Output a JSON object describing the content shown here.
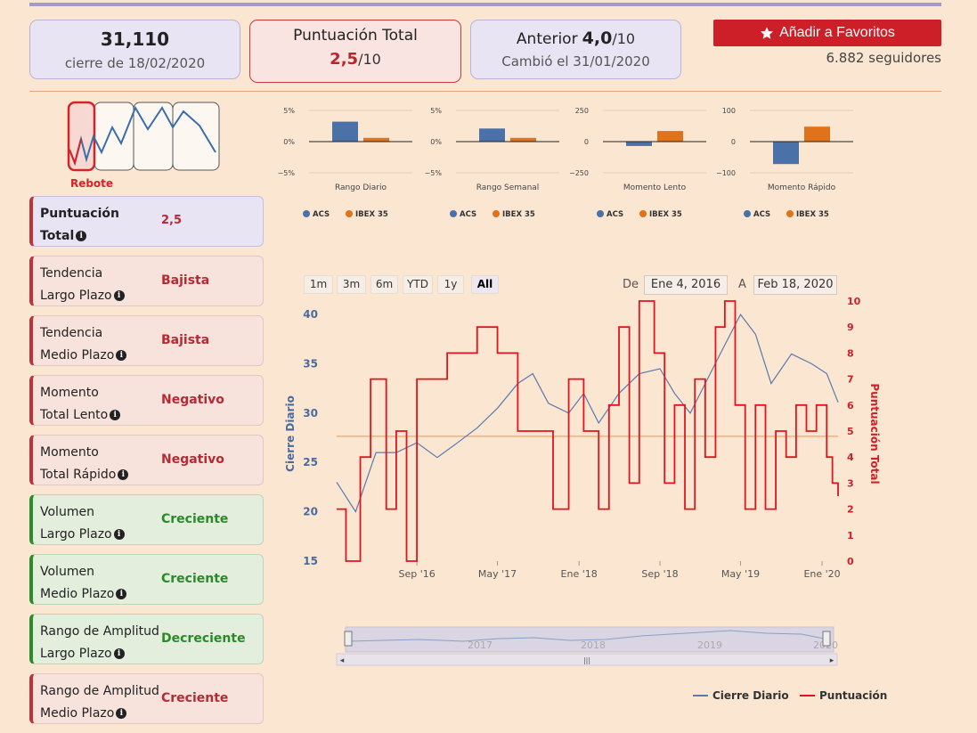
{
  "header": {
    "price": "31,110",
    "price_date": "cierre de 18/02/2020",
    "score_title": "Puntuación Total",
    "score_value": "2,5",
    "score_of": "/10",
    "prev_label": "Anterior",
    "prev_value": "4,0",
    "prev_of": "/10",
    "prev_changed": "Cambió el 31/01/2020",
    "fav_label": "Añadir a Favoritos",
    "followers": "6.882 seguidores"
  },
  "pattern": {
    "label": "Rebote"
  },
  "indicators": [
    {
      "line1": "Puntuación",
      "line2": "Total",
      "value": "2,5",
      "kind": "total"
    },
    {
      "line1": "Tendencia",
      "line2": "Largo Plazo",
      "value": "Bajista",
      "kind": "red"
    },
    {
      "line1": "Tendencia",
      "line2": "Medio Plazo",
      "value": "Bajista",
      "kind": "red"
    },
    {
      "line1": "Momento",
      "line2": "Total Lento",
      "value": "Negativo",
      "kind": "red"
    },
    {
      "line1": "Momento",
      "line2": "Total Rápido",
      "value": "Negativo",
      "kind": "red"
    },
    {
      "line1": "Volumen",
      "line2": "Largo Plazo",
      "value": "Creciente",
      "kind": "green"
    },
    {
      "line1": "Volumen",
      "line2": "Medio Plazo",
      "value": "Creciente",
      "kind": "green"
    },
    {
      "line1": "Rango de Amplitud",
      "line2": "Largo Plazo",
      "value": "Decreciente",
      "kind": "green"
    },
    {
      "line1": "Rango de Amplitud",
      "line2": "Medio Plazo",
      "value": "Creciente",
      "kind": "red"
    }
  ],
  "mini_legend": [
    "ACS",
    "IBEX 35"
  ],
  "colors": {
    "acs": "#4a72a8",
    "ibex": "#e0721a",
    "score": "#e0141e",
    "price": "#5b79ad",
    "ref": "#f0b07a"
  },
  "chart_data": [
    {
      "type": "bar",
      "title": "Rango Diario",
      "categories": [
        "ACS",
        "IBEX 35"
      ],
      "values": [
        3.2,
        0.6
      ],
      "yticks": [
        "5%",
        "0%",
        "−5%"
      ],
      "ylim": [
        -5,
        5
      ]
    },
    {
      "type": "bar",
      "title": "Rango Semanal",
      "categories": [
        "ACS",
        "IBEX 35"
      ],
      "values": [
        2.1,
        0.6
      ],
      "yticks": [
        "5%",
        "0%",
        "−5%"
      ],
      "ylim": [
        -5,
        5
      ]
    },
    {
      "type": "bar",
      "title": "Momento Lento",
      "categories": [
        "ACS",
        "IBEX 35"
      ],
      "values": [
        -35,
        85
      ],
      "yticks": [
        "250",
        "0",
        "−250"
      ],
      "ylim": [
        -250,
        250
      ]
    },
    {
      "type": "bar",
      "title": "Momento Rápido",
      "categories": [
        "ACS",
        "IBEX 35"
      ],
      "values": [
        -72,
        48
      ],
      "yticks": [
        "100",
        "0",
        "−100"
      ],
      "ylim": [
        -100,
        100
      ]
    },
    {
      "type": "line",
      "ylabel_left": "Cierre Diario",
      "ylabel_right": "Puntuación Total",
      "yticks_left": [
        "15",
        "20",
        "25",
        "30",
        "35",
        "40"
      ],
      "yticks_right": [
        "0",
        "1",
        "2",
        "3",
        "4",
        "5",
        "6",
        "7",
        "8",
        "9",
        "10"
      ],
      "xticks": [
        "Sep '16",
        "May '17",
        "Ene '18",
        "Sep '18",
        "May '19",
        "Ene '20"
      ],
      "ylim_left": [
        15,
        41
      ],
      "ylim_right": [
        0,
        10
      ],
      "reference_line": 4.8,
      "series": [
        {
          "name": "Cierre Diario",
          "axis": "left",
          "x": [
            "2016-01-04",
            "2016-03-01",
            "2016-05-01",
            "2016-07-01",
            "2016-09-01",
            "2016-11-01",
            "2017-01-01",
            "2017-03-01",
            "2017-05-01",
            "2017-07-01",
            "2017-08-15",
            "2017-10-01",
            "2017-12-01",
            "2018-01-15",
            "2018-03-01",
            "2018-05-01",
            "2018-07-01",
            "2018-09-01",
            "2018-10-15",
            "2018-12-01",
            "2019-01-15",
            "2019-03-01",
            "2019-05-01",
            "2019-06-15",
            "2019-08-01",
            "2019-10-01",
            "2019-12-01",
            "2020-01-15",
            "2020-02-18"
          ],
          "y": [
            23,
            20,
            26,
            26,
            27,
            25.5,
            27,
            28.5,
            30.5,
            33,
            34,
            31,
            30,
            32,
            29,
            32,
            34,
            34.5,
            32,
            30,
            33,
            36,
            40,
            38,
            33,
            36,
            35,
            34,
            31.1
          ]
        },
        {
          "name": "Puntuación",
          "axis": "right",
          "x": [
            "2016-01-04",
            "2016-02-01",
            "2016-03-15",
            "2016-04-15",
            "2016-06-01",
            "2016-07-01",
            "2016-08-01",
            "2016-09-01",
            "2016-10-01",
            "2016-12-01",
            "2017-02-01",
            "2017-03-01",
            "2017-04-01",
            "2017-05-01",
            "2017-07-01",
            "2017-09-01",
            "2017-10-15",
            "2017-12-01",
            "2018-01-15",
            "2018-03-01",
            "2018-04-01",
            "2018-05-01",
            "2018-06-01",
            "2018-07-01",
            "2018-08-15",
            "2018-09-15",
            "2018-10-15",
            "2018-11-15",
            "2018-12-15",
            "2019-01-15",
            "2019-02-15",
            "2019-03-15",
            "2019-04-15",
            "2019-05-15",
            "2019-06-15",
            "2019-07-15",
            "2019-08-15",
            "2019-09-15",
            "2019-10-15",
            "2019-11-15",
            "2019-12-15",
            "2020-01-15",
            "2020-02-01",
            "2020-02-18"
          ],
          "y": [
            2,
            0,
            4,
            7,
            2,
            5,
            0,
            7,
            7,
            8,
            8,
            9,
            9,
            8,
            5,
            5,
            2,
            7,
            5,
            2,
            6,
            9,
            3,
            10,
            8,
            3,
            6,
            2,
            7,
            4,
            9,
            10,
            6,
            2,
            6,
            2,
            5,
            4,
            6,
            5,
            6,
            4,
            3,
            2.5
          ]
        }
      ]
    }
  ],
  "range": {
    "buttons": [
      "1m",
      "3m",
      "6m",
      "YTD",
      "1y",
      "All"
    ],
    "active": "All",
    "from_label": "De",
    "from_value": "Ene 4, 2016",
    "to_label": "A",
    "to_value": "Feb 18, 2020",
    "navigator_years": [
      "2017",
      "2018",
      "2019",
      "2020"
    ]
  },
  "legend": [
    "Cierre Diario",
    "Puntuación"
  ]
}
